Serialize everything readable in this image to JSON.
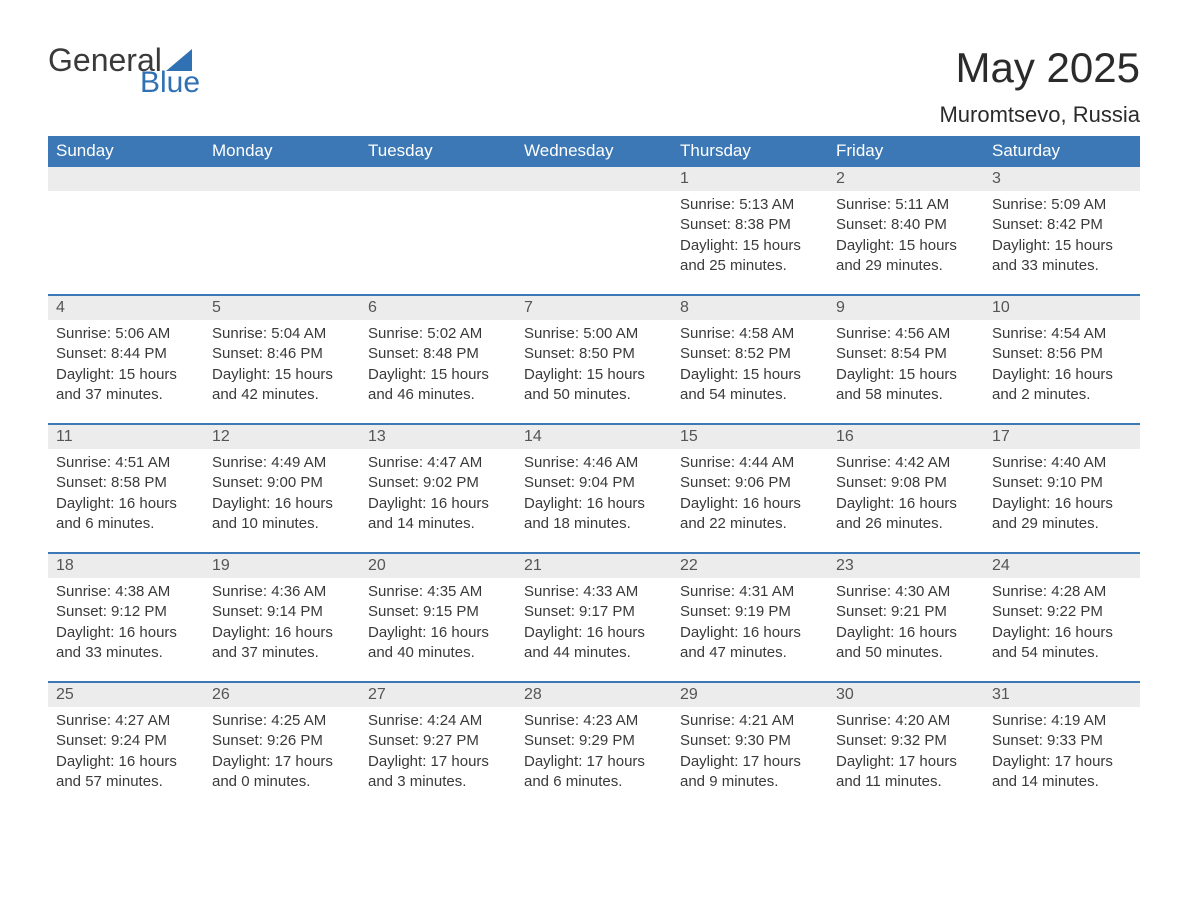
{
  "logo": {
    "general": "General",
    "blue": "Blue",
    "shape_color": "#2f71b3"
  },
  "title": "May 2025",
  "location": "Muromtsevo, Russia",
  "colors": {
    "header_bg": "#3b78b5",
    "header_text": "#ffffff",
    "daynum_bg": "#ececec",
    "daynum_text": "#555555",
    "body_text": "#3a3a3a",
    "divider": "#3b78b5",
    "page_bg": "#ffffff"
  },
  "typography": {
    "title_fontsize": 42,
    "location_fontsize": 22,
    "header_fontsize": 17,
    "daynum_fontsize": 16,
    "body_fontsize": 15
  },
  "day_headers": [
    "Sunday",
    "Monday",
    "Tuesday",
    "Wednesday",
    "Thursday",
    "Friday",
    "Saturday"
  ],
  "labels": {
    "sunrise": "Sunrise:",
    "sunset": "Sunset:",
    "daylight": "Daylight:"
  },
  "weeks": [
    [
      {
        "day": "",
        "sunrise": "",
        "sunset": "",
        "daylight": ""
      },
      {
        "day": "",
        "sunrise": "",
        "sunset": "",
        "daylight": ""
      },
      {
        "day": "",
        "sunrise": "",
        "sunset": "",
        "daylight": ""
      },
      {
        "day": "",
        "sunrise": "",
        "sunset": "",
        "daylight": ""
      },
      {
        "day": "1",
        "sunrise": "5:13 AM",
        "sunset": "8:38 PM",
        "daylight": "15 hours and 25 minutes."
      },
      {
        "day": "2",
        "sunrise": "5:11 AM",
        "sunset": "8:40 PM",
        "daylight": "15 hours and 29 minutes."
      },
      {
        "day": "3",
        "sunrise": "5:09 AM",
        "sunset": "8:42 PM",
        "daylight": "15 hours and 33 minutes."
      }
    ],
    [
      {
        "day": "4",
        "sunrise": "5:06 AM",
        "sunset": "8:44 PM",
        "daylight": "15 hours and 37 minutes."
      },
      {
        "day": "5",
        "sunrise": "5:04 AM",
        "sunset": "8:46 PM",
        "daylight": "15 hours and 42 minutes."
      },
      {
        "day": "6",
        "sunrise": "5:02 AM",
        "sunset": "8:48 PM",
        "daylight": "15 hours and 46 minutes."
      },
      {
        "day": "7",
        "sunrise": "5:00 AM",
        "sunset": "8:50 PM",
        "daylight": "15 hours and 50 minutes."
      },
      {
        "day": "8",
        "sunrise": "4:58 AM",
        "sunset": "8:52 PM",
        "daylight": "15 hours and 54 minutes."
      },
      {
        "day": "9",
        "sunrise": "4:56 AM",
        "sunset": "8:54 PM",
        "daylight": "15 hours and 58 minutes."
      },
      {
        "day": "10",
        "sunrise": "4:54 AM",
        "sunset": "8:56 PM",
        "daylight": "16 hours and 2 minutes."
      }
    ],
    [
      {
        "day": "11",
        "sunrise": "4:51 AM",
        "sunset": "8:58 PM",
        "daylight": "16 hours and 6 minutes."
      },
      {
        "day": "12",
        "sunrise": "4:49 AM",
        "sunset": "9:00 PM",
        "daylight": "16 hours and 10 minutes."
      },
      {
        "day": "13",
        "sunrise": "4:47 AM",
        "sunset": "9:02 PM",
        "daylight": "16 hours and 14 minutes."
      },
      {
        "day": "14",
        "sunrise": "4:46 AM",
        "sunset": "9:04 PM",
        "daylight": "16 hours and 18 minutes."
      },
      {
        "day": "15",
        "sunrise": "4:44 AM",
        "sunset": "9:06 PM",
        "daylight": "16 hours and 22 minutes."
      },
      {
        "day": "16",
        "sunrise": "4:42 AM",
        "sunset": "9:08 PM",
        "daylight": "16 hours and 26 minutes."
      },
      {
        "day": "17",
        "sunrise": "4:40 AM",
        "sunset": "9:10 PM",
        "daylight": "16 hours and 29 minutes."
      }
    ],
    [
      {
        "day": "18",
        "sunrise": "4:38 AM",
        "sunset": "9:12 PM",
        "daylight": "16 hours and 33 minutes."
      },
      {
        "day": "19",
        "sunrise": "4:36 AM",
        "sunset": "9:14 PM",
        "daylight": "16 hours and 37 minutes."
      },
      {
        "day": "20",
        "sunrise": "4:35 AM",
        "sunset": "9:15 PM",
        "daylight": "16 hours and 40 minutes."
      },
      {
        "day": "21",
        "sunrise": "4:33 AM",
        "sunset": "9:17 PM",
        "daylight": "16 hours and 44 minutes."
      },
      {
        "day": "22",
        "sunrise": "4:31 AM",
        "sunset": "9:19 PM",
        "daylight": "16 hours and 47 minutes."
      },
      {
        "day": "23",
        "sunrise": "4:30 AM",
        "sunset": "9:21 PM",
        "daylight": "16 hours and 50 minutes."
      },
      {
        "day": "24",
        "sunrise": "4:28 AM",
        "sunset": "9:22 PM",
        "daylight": "16 hours and 54 minutes."
      }
    ],
    [
      {
        "day": "25",
        "sunrise": "4:27 AM",
        "sunset": "9:24 PM",
        "daylight": "16 hours and 57 minutes."
      },
      {
        "day": "26",
        "sunrise": "4:25 AM",
        "sunset": "9:26 PM",
        "daylight": "17 hours and 0 minutes."
      },
      {
        "day": "27",
        "sunrise": "4:24 AM",
        "sunset": "9:27 PM",
        "daylight": "17 hours and 3 minutes."
      },
      {
        "day": "28",
        "sunrise": "4:23 AM",
        "sunset": "9:29 PM",
        "daylight": "17 hours and 6 minutes."
      },
      {
        "day": "29",
        "sunrise": "4:21 AM",
        "sunset": "9:30 PM",
        "daylight": "17 hours and 9 minutes."
      },
      {
        "day": "30",
        "sunrise": "4:20 AM",
        "sunset": "9:32 PM",
        "daylight": "17 hours and 11 minutes."
      },
      {
        "day": "31",
        "sunrise": "4:19 AM",
        "sunset": "9:33 PM",
        "daylight": "17 hours and 14 minutes."
      }
    ]
  ]
}
